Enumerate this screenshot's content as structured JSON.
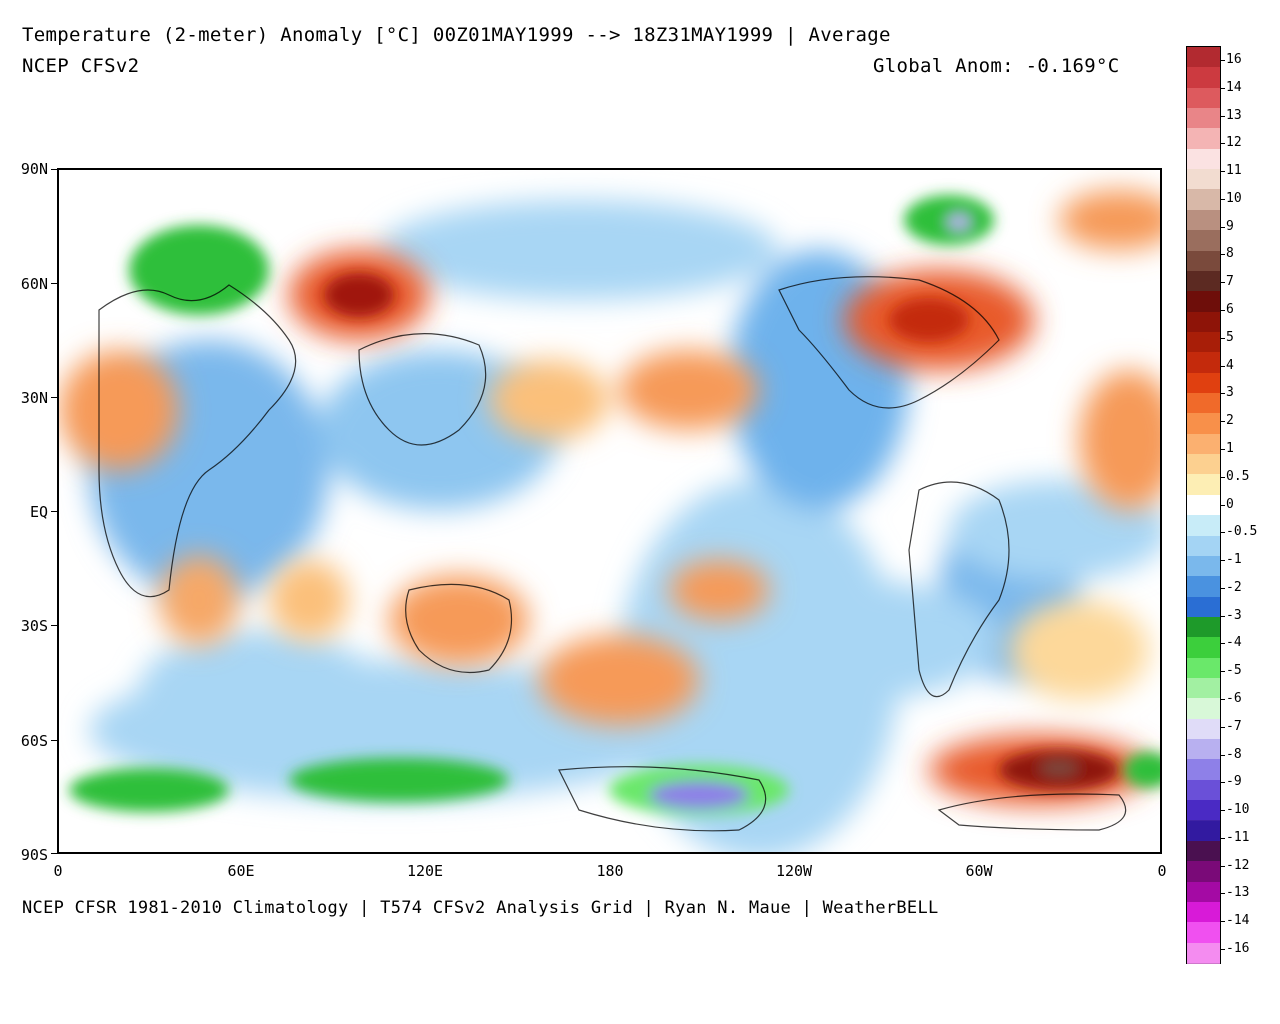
{
  "header": {
    "title_line": "Temperature (2-meter) Anomaly  [°C] 00Z01MAY1999 --> 18Z31MAY1999 | Average",
    "model": "NCEP CFSv2",
    "global_anom": "Global Anom: -0.169°C"
  },
  "axes": {
    "lat_labels": [
      "90N",
      "60N",
      "30N",
      "EQ",
      "30S",
      "60S",
      "90S"
    ],
    "lon_labels": [
      "0",
      "60E",
      "120E",
      "180",
      "120W",
      "60W",
      "0"
    ]
  },
  "footer": {
    "credit": "NCEP CFSR 1981-2010 Climatology | T574 CFSv2 Analysis Grid | Ryan N. Maue | WeatherBELL"
  },
  "colorbar": {
    "labels": [
      "16",
      "14",
      "13",
      "12",
      "11",
      "10",
      "9",
      "8",
      "7",
      "6",
      "5",
      "4",
      "3",
      "2",
      "1",
      "0.5",
      "0",
      "-0.5",
      "-1",
      "-2",
      "-3",
      "-4",
      "-5",
      "-6",
      "-7",
      "-8",
      "-9",
      "-10",
      "-11",
      "-12",
      "-13",
      "-14",
      "-16"
    ],
    "colors": [
      "#b22a30",
      "#cc3a40",
      "#dd5a5e",
      "#e98588",
      "#f4b4b4",
      "#fbe2e2",
      "#f2dcd0",
      "#d8b8a8",
      "#b99080",
      "#9a6e5e",
      "#7a4a3c",
      "#5c2a22",
      "#6e0e0a",
      "#8e1408",
      "#a81e08",
      "#c42a0c",
      "#e04010",
      "#f06a2a",
      "#f8904a",
      "#fbb070",
      "#fcd090",
      "#fdeeb4",
      "#ffffff",
      "#c8ecf8",
      "#a4d4f4",
      "#7ab8ec",
      "#4a92e0",
      "#2a6ed4",
      "#1e9a2a",
      "#3ccf3c",
      "#6ae86a",
      "#a2f0a2",
      "#d8f8d8",
      "#e0dcf8",
      "#b8b0f0",
      "#8e80e8",
      "#6a50d8",
      "#4a2ac4",
      "#321aa0",
      "#4a1050",
      "#7a0a78",
      "#a40aa4",
      "#d81ad8",
      "#f050f0",
      "#f48cf0"
    ]
  },
  "map": {
    "background_color": "#ffffff",
    "warm_anomaly_color": "#f4914e",
    "cool_anomaly_color": "#5aa6ec",
    "strong_cold_color": "#2fbf3a",
    "strong_warm_color": "#a0160e",
    "coastline_color": "#000000"
  }
}
